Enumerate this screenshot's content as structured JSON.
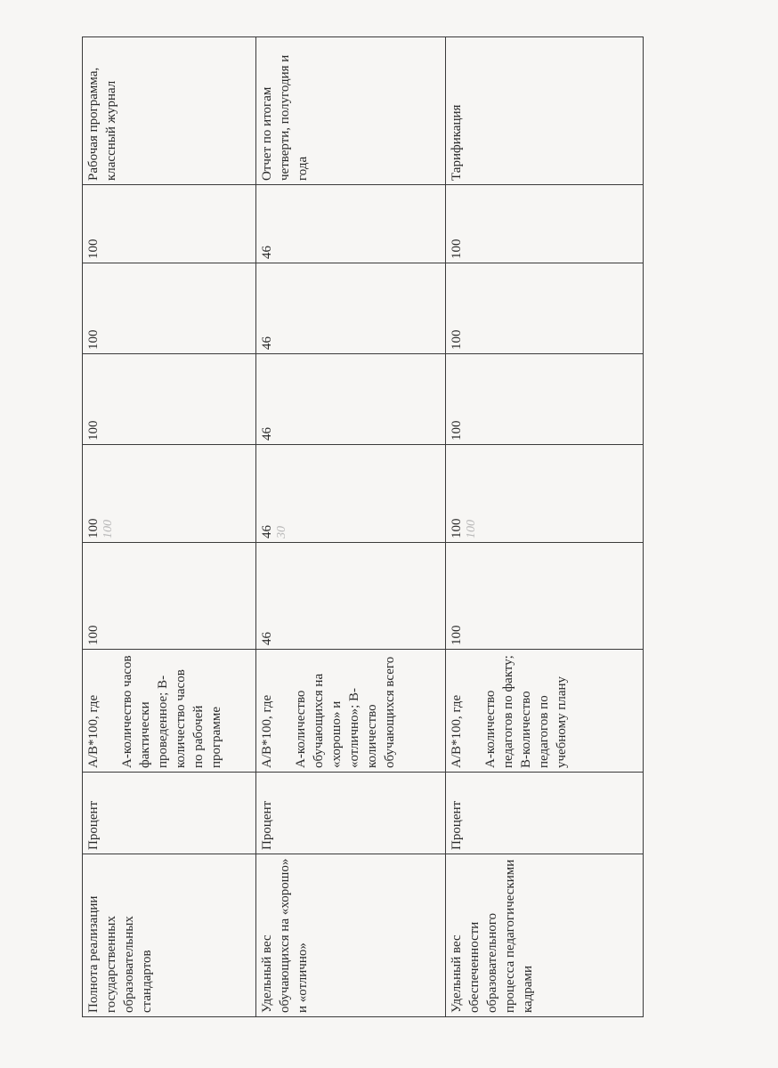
{
  "rows": [
    {
      "indicator": "Полнота реализации государственных образовательных стандартов",
      "unit": "Процент",
      "formula_head": "А/В*100, где",
      "formula_a": "А-количество часов фактически проведенное;",
      "formula_b": "В-количество часов по рабочей программе",
      "v1": "100",
      "v2": "100",
      "v2_hand": "100",
      "v3": "100",
      "v4": "100",
      "v5": "100",
      "source": "Рабочая программа, классный журнал"
    },
    {
      "indicator": "Удельный вес обучающихся на «хорошо» и «отлично»",
      "unit": "Процент",
      "formula_head": "А/В*100, где",
      "formula_a": "А-количество обучающихся на «хорошо» и «отлично»;",
      "formula_b": "В-количество обучающихся всего",
      "v1": "46",
      "v2": "46",
      "v2_hand": "30",
      "v3": "46",
      "v4": "46",
      "v5": "46",
      "source": "Отчет по итогам четверти, полугодия и года"
    },
    {
      "indicator": "Удельный вес обеспеченности образовательного процесса педагогическими кадрами",
      "unit": "Процент",
      "formula_head": "А/В*100, где",
      "formula_a": "А-количество педагогов по факту;",
      "formula_b": "В-количество педагогов по учебному плану",
      "v1": "100",
      "v2": "100",
      "v2_hand": "100",
      "v3": "100",
      "v4": "100",
      "v5": "100",
      "source": "Тарификация"
    }
  ]
}
